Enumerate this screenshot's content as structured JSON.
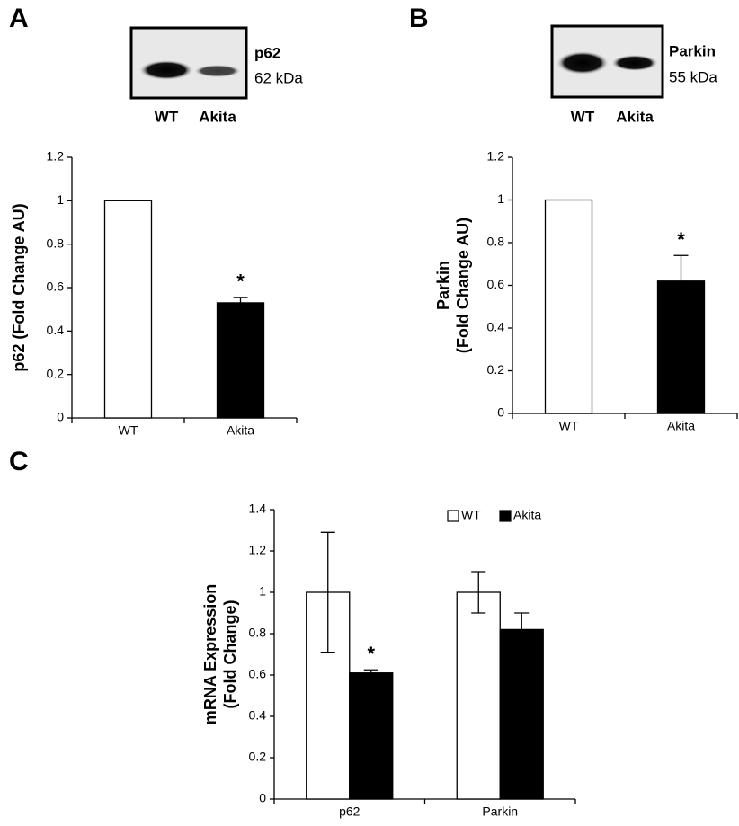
{
  "chart_data": [
    {
      "type": "bar",
      "panel_label": "A",
      "blot": {
        "protein": "p62",
        "size": "62 kDa",
        "lanes": [
          "WT",
          "Akita"
        ]
      },
      "ylabel": "p62 (Fold Change AU)",
      "categories": [
        "WT",
        "Akita"
      ],
      "values": [
        1,
        0.53
      ],
      "errors": [
        null,
        0.025
      ],
      "colors": [
        "#ffffff",
        "#000000"
      ],
      "significance": [
        null,
        "*"
      ],
      "ylim": [
        0,
        1.2
      ],
      "yticks": [
        0,
        0.2,
        0.4,
        0.6,
        0.8,
        1,
        1.2
      ]
    },
    {
      "type": "bar",
      "panel_label": "B",
      "blot": {
        "protein": "Parkin",
        "size": "55 kDa",
        "lanes": [
          "WT",
          "Akita"
        ]
      },
      "ylabel": [
        "Parkin",
        "(Fold Change AU)"
      ],
      "categories": [
        "WT",
        "Akita"
      ],
      "values": [
        1,
        0.62
      ],
      "errors": [
        null,
        0.12
      ],
      "colors": [
        "#ffffff",
        "#000000"
      ],
      "significance": [
        null,
        "*"
      ],
      "ylim": [
        0,
        1.2
      ],
      "yticks": [
        0,
        0.2,
        0.4,
        0.6,
        0.8,
        1,
        1.2
      ]
    },
    {
      "type": "grouped_bar",
      "panel_label": "C",
      "ylabel": [
        "mRNA Expression",
        "(Fold Change)"
      ],
      "categories": [
        "p62",
        "Parkin"
      ],
      "series": [
        {
          "name": "WT",
          "color": "#ffffff",
          "values": [
            1,
            1
          ],
          "errors": [
            0.29,
            0.1
          ],
          "significance": [
            null,
            null
          ]
        },
        {
          "name": "Akita",
          "color": "#000000",
          "values": [
            0.61,
            0.82
          ],
          "errors": [
            0.015,
            0.08
          ],
          "significance": [
            "*",
            null
          ]
        }
      ],
      "ylim": [
        0,
        1.4
      ],
      "yticks": [
        0,
        0.2,
        0.4,
        0.6,
        0.8,
        1,
        1.2,
        1.4
      ]
    }
  ]
}
